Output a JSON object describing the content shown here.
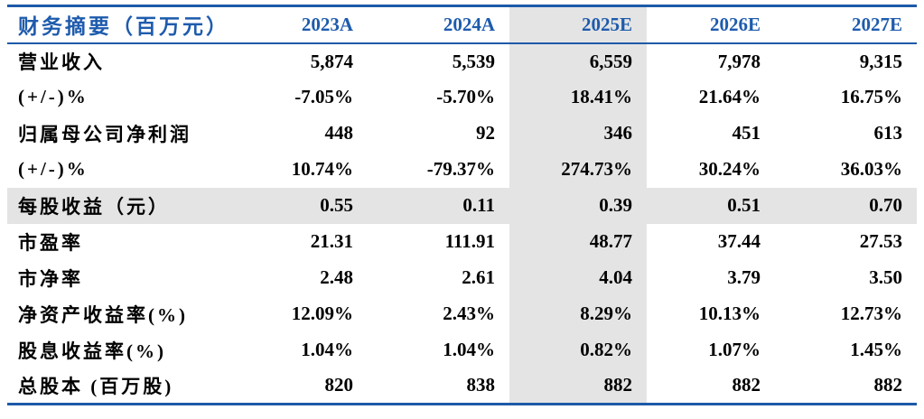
{
  "table": {
    "title": "财务摘要（百万元）",
    "header": {
      "columns": [
        "2023A",
        "2024A",
        "2025E",
        "2026E",
        "2027E"
      ]
    },
    "highlight": {
      "column_index": 2,
      "highlighted_column_label": "2025E",
      "highlighted_row_label": "每股收益（元）",
      "highlight_bg": "#e4e4e4"
    },
    "colors": {
      "header_text": "#1e5bad",
      "border": "#1d5aa8",
      "body_text": "#000000"
    },
    "rows": [
      {
        "label": "营业收入",
        "highlighted": false,
        "values": [
          "5,874",
          "5,539",
          "6,559",
          "7,978",
          "9,315"
        ]
      },
      {
        "label": "(+/-)%",
        "highlighted": false,
        "values": [
          "-7.05%",
          "-5.70%",
          "18.41%",
          "21.64%",
          "16.75%"
        ]
      },
      {
        "label": "归属母公司净利润",
        "highlighted": false,
        "values": [
          "448",
          "92",
          "346",
          "451",
          "613"
        ]
      },
      {
        "label": "(+/-)%",
        "highlighted": false,
        "values": [
          "10.74%",
          "-79.37%",
          "274.73%",
          "30.24%",
          "36.03%"
        ]
      },
      {
        "label": "每股收益（元）",
        "highlighted": true,
        "values": [
          "0.55",
          "0.11",
          "0.39",
          "0.51",
          "0.70"
        ]
      },
      {
        "label": "市盈率",
        "highlighted": false,
        "values": [
          "21.31",
          "111.91",
          "48.77",
          "37.44",
          "27.53"
        ]
      },
      {
        "label": "市净率",
        "highlighted": false,
        "values": [
          "2.48",
          "2.61",
          "4.04",
          "3.79",
          "3.50"
        ]
      },
      {
        "label": "净资产收益率(%)",
        "highlighted": false,
        "values": [
          "12.09%",
          "2.43%",
          "8.29%",
          "10.13%",
          "12.73%"
        ]
      },
      {
        "label": "股息收益率(%)",
        "highlighted": false,
        "values": [
          "1.04%",
          "1.04%",
          "0.82%",
          "1.07%",
          "1.45%"
        ]
      },
      {
        "label": "总股本 (百万股)",
        "highlighted": false,
        "values": [
          "820",
          "838",
          "882",
          "882",
          "882"
        ]
      }
    ]
  }
}
